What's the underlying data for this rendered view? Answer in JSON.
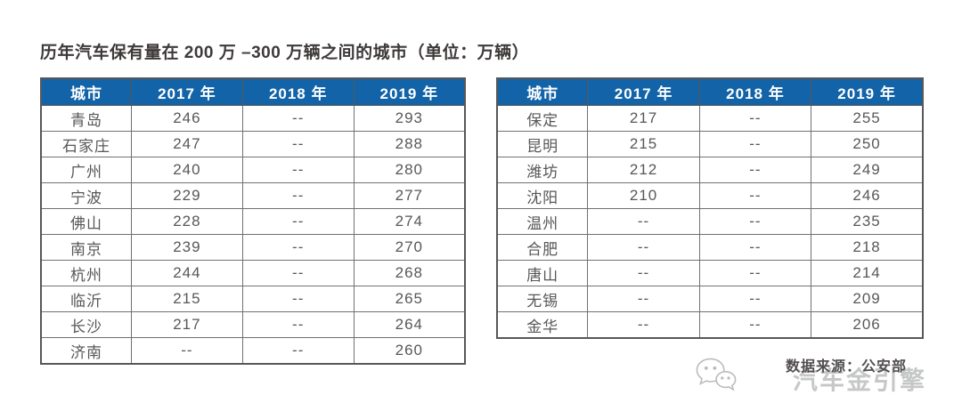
{
  "title": "历年汽车保有量在 200 万 –300 万辆之间的城市（单位：万辆）",
  "colors": {
    "header_bg": "#1263a7",
    "header_text": "#ffffff",
    "body_text": "#595757",
    "border": "#727171",
    "title_text": "#3e3a39",
    "watermark_text_color": "#c6c7c7",
    "source_text_color": "#524f4e"
  },
  "tables": [
    {
      "headers": [
        "城市",
        "2017 年",
        "2018 年",
        "2019 年"
      ],
      "rows": [
        [
          "青岛",
          "246",
          "--",
          "293"
        ],
        [
          "石家庄",
          "247",
          "--",
          "288"
        ],
        [
          "广州",
          "240",
          "--",
          "280"
        ],
        [
          "宁波",
          "229",
          "--",
          "277"
        ],
        [
          "佛山",
          "228",
          "--",
          "274"
        ],
        [
          "南京",
          "239",
          "--",
          "270"
        ],
        [
          "杭州",
          "244",
          "--",
          "268"
        ],
        [
          "临沂",
          "215",
          "--",
          "265"
        ],
        [
          "长沙",
          "217",
          "--",
          "264"
        ],
        [
          "济南",
          "--",
          "--",
          "260"
        ]
      ]
    },
    {
      "headers": [
        "城市",
        "2017 年",
        "2018 年",
        "2019 年"
      ],
      "rows": [
        [
          "保定",
          "217",
          "--",
          "255"
        ],
        [
          "昆明",
          "215",
          "--",
          "250"
        ],
        [
          "潍坊",
          "212",
          "--",
          "249"
        ],
        [
          "沈阳",
          "210",
          "--",
          "246"
        ],
        [
          "温州",
          "--",
          "--",
          "235"
        ],
        [
          "合肥",
          "--",
          "--",
          "218"
        ],
        [
          "唐山",
          "--",
          "--",
          "214"
        ],
        [
          "无锡",
          "--",
          "--",
          "209"
        ],
        [
          "金华",
          "--",
          "--",
          "206"
        ]
      ]
    }
  ],
  "footer": {
    "source": "数据来源：公安部",
    "watermark": "汽车金引擎",
    "watermark_icon": "wechat-chat-bubbles-icon"
  }
}
